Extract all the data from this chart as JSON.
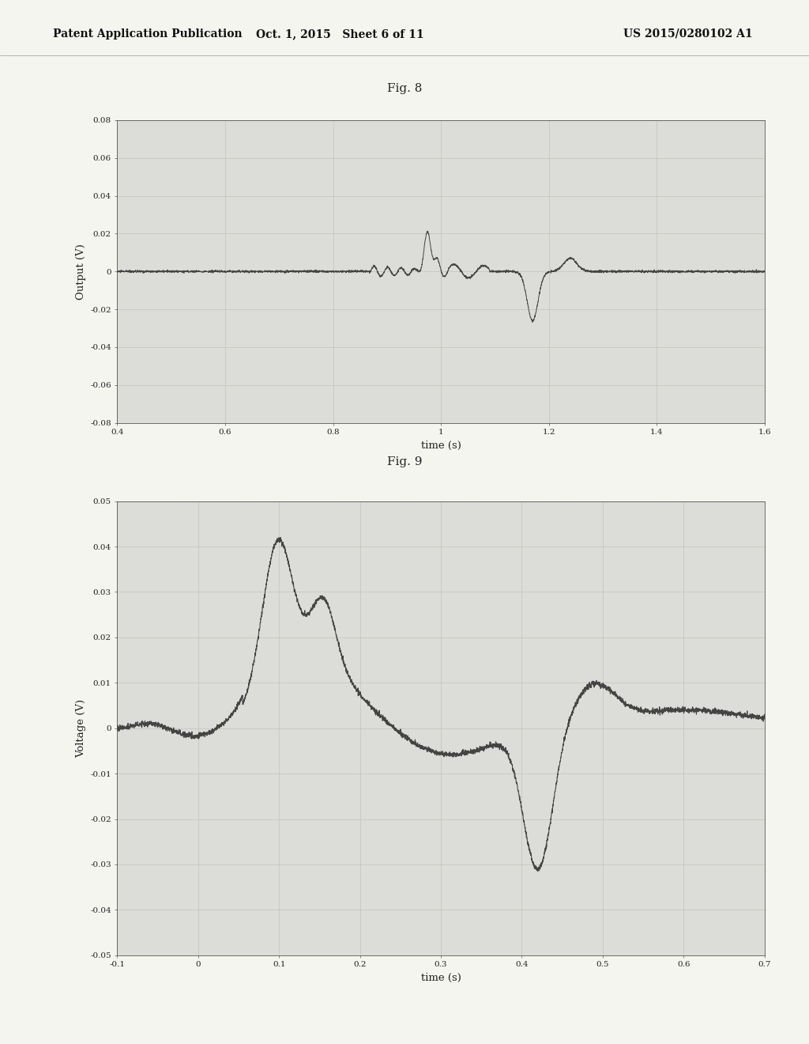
{
  "fig8_title": "Fig. 8",
  "fig9_title": "Fig. 9",
  "header_left": "Patent Application Publication",
  "header_mid": "Oct. 1, 2015   Sheet 6 of 11",
  "header_right": "US 2015/0280102 A1",
  "page_bg": "#f5f5f0",
  "fig8": {
    "xlabel": "time (s)",
    "ylabel": "Output (V)",
    "xlim": [
      0.4,
      1.6
    ],
    "ylim": [
      -0.08,
      0.08
    ],
    "xticks": [
      0.4,
      0.6,
      0.8,
      1.0,
      1.2,
      1.4,
      1.6
    ],
    "yticks": [
      -0.08,
      -0.06,
      -0.04,
      -0.02,
      0,
      0.02,
      0.04,
      0.06,
      0.08
    ],
    "line_color": "#444444",
    "bg_color": "#dcdcd8",
    "grid_color": "#c0c0ba"
  },
  "fig9": {
    "xlabel": "time (s)",
    "ylabel": "Voltage (V)",
    "xlim": [
      -0.1,
      0.7
    ],
    "ylim": [
      -0.05,
      0.05
    ],
    "xticks": [
      -0.1,
      0.0,
      0.1,
      0.2,
      0.3,
      0.4,
      0.5,
      0.6,
      0.7
    ],
    "yticks": [
      -0.05,
      -0.04,
      -0.03,
      -0.02,
      -0.01,
      0,
      0.01,
      0.02,
      0.03,
      0.04,
      0.05
    ],
    "line_color": "#444444",
    "bg_color": "#dcdcd8",
    "grid_color": "#c0c0ba"
  }
}
